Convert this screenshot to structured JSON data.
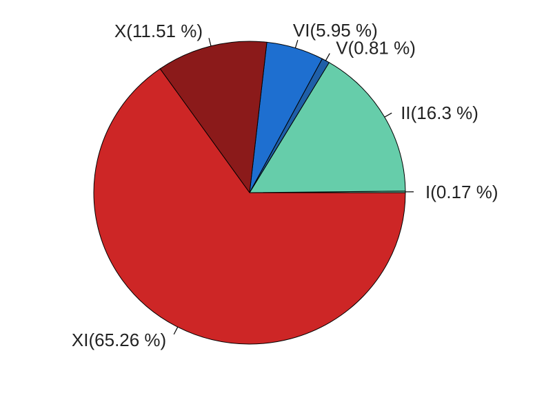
{
  "chart_data": {
    "type": "pie",
    "title": "",
    "direction": "counterclockwise",
    "start_angle_deg": 0,
    "slices": [
      {
        "category": "I",
        "label": "I(0.17 %)",
        "value": 0.17,
        "color": "#66cdaa"
      },
      {
        "category": "II",
        "label": "II(16.3 %)",
        "value": 16.3,
        "color": "#66cdaa"
      },
      {
        "category": "V",
        "label": "V(0.81 %)",
        "value": 0.81,
        "color": "#1f5fa8"
      },
      {
        "category": "VI",
        "label": "VI(5.95 %)",
        "value": 5.95,
        "color": "#1e6fd0"
      },
      {
        "category": "X",
        "label": "X(11.51 %)",
        "value": 11.51,
        "color": "#8b1a1a"
      },
      {
        "category": "XI",
        "label": "XI(65.26 %)",
        "value": 65.26,
        "color": "#cd2626"
      }
    ]
  }
}
